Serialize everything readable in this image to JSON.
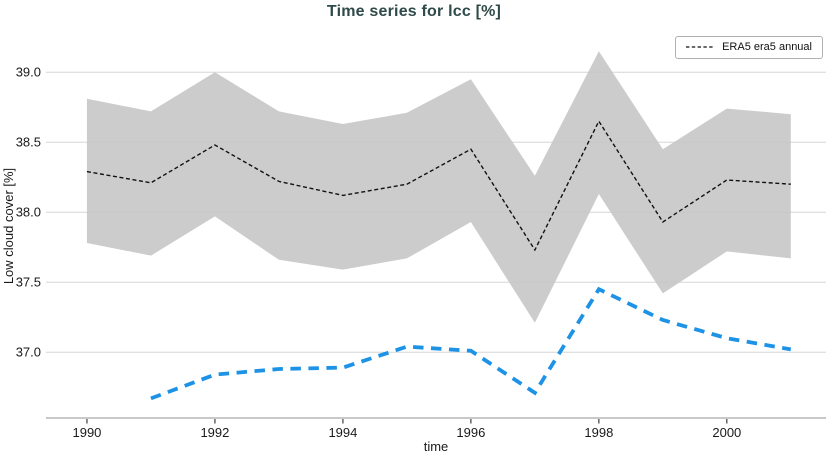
{
  "chart_data": {
    "type": "line",
    "title": "Time series for lcc [%]",
    "xlabel": "time",
    "ylabel": "Low cloud cover [%]",
    "grid": "horizontal",
    "legend_position": "top-right",
    "xlim": [
      1989.36,
      2001.55
    ],
    "ylim": [
      36.53,
      39.28
    ],
    "x_ticks": [
      {
        "value": 1990,
        "label": "1990"
      },
      {
        "value": 1992,
        "label": "1992"
      },
      {
        "value": 1994,
        "label": "1994"
      },
      {
        "value": 1996,
        "label": "1996"
      },
      {
        "value": 1998,
        "label": "1998"
      },
      {
        "value": 2000,
        "label": "2000"
      }
    ],
    "y_ticks": [
      {
        "value": 37.0,
        "label": "37.0"
      },
      {
        "value": 37.5,
        "label": "37.5"
      },
      {
        "value": 38.0,
        "label": "38.0"
      },
      {
        "value": 38.5,
        "label": "38.5"
      },
      {
        "value": 39.0,
        "label": "39.0"
      }
    ],
    "series": [
      {
        "id": "era5-annual",
        "name": "ERA5 era5 annual",
        "in_legend": true,
        "line_style": "dashed",
        "line_width": 1.4,
        "dash": "4 2.6",
        "color": "#111111",
        "x": [
          1990,
          1991,
          1992,
          1993,
          1994,
          1995,
          1996,
          1997,
          1998,
          1999,
          2000,
          2001
        ],
        "y": [
          38.29,
          38.21,
          38.48,
          38.22,
          38.12,
          38.2,
          38.45,
          37.73,
          38.65,
          37.93,
          38.23,
          38.2
        ],
        "band": {
          "color": "#cccccc",
          "top": [
            38.81,
            38.72,
            39.0,
            38.72,
            38.63,
            38.71,
            38.95,
            38.26,
            39.15,
            38.45,
            38.74,
            38.7
          ],
          "bottom": [
            37.78,
            37.69,
            37.97,
            37.66,
            37.59,
            37.67,
            37.93,
            37.21,
            38.13,
            37.42,
            37.72,
            37.67
          ]
        }
      },
      {
        "id": "secondary-annual",
        "in_legend": false,
        "line_style": "dashed",
        "line_width": 3.8,
        "dash": "10.5 7.5",
        "color": "#1e93e6",
        "x": [
          1991,
          1992,
          1993,
          1994,
          1995,
          1996,
          1997,
          1998,
          1999,
          2000,
          2001
        ],
        "y": [
          36.67,
          36.84,
          36.88,
          36.89,
          37.04,
          37.01,
          36.71,
          37.45,
          37.23,
          37.1,
          37.02
        ]
      }
    ],
    "colors": {
      "title": "#2e4a49",
      "grid": "#c7c7c7",
      "axis_line": "#c9c9c9",
      "tick_mark": "#4d4d4d",
      "tick_label": "#1a1a1a",
      "background": "#ffffff",
      "legend_border": "#b0b0b0"
    }
  }
}
